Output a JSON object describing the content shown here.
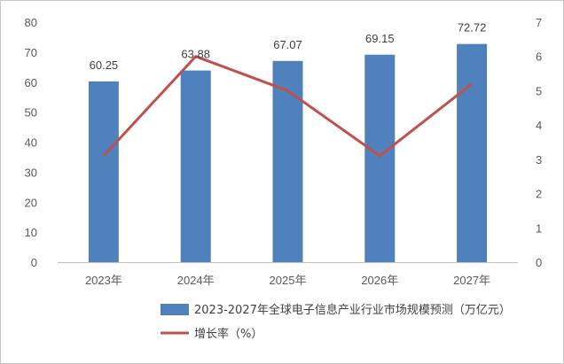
{
  "chart_data": {
    "type": "bar",
    "categories": [
      "2023年",
      "2024年",
      "2025年",
      "2026年",
      "2027年"
    ],
    "series": [
      {
        "name": "2023-2027年全球电子信息产业行业市场规模预测（万亿元）",
        "type": "bar",
        "axis": "left",
        "color": "#4f81bd",
        "values": [
          60.25,
          63.88,
          67.07,
          69.15,
          72.72
        ],
        "labels": [
          "60.25",
          "63.88",
          "67.07",
          "69.15",
          "72.72"
        ]
      },
      {
        "name": "增长率（%）",
        "type": "line",
        "axis": "right",
        "color": "#c0504d",
        "values": [
          3.1,
          6.0,
          5.0,
          3.1,
          5.2
        ]
      }
    ],
    "ylim_left": [
      0,
      80
    ],
    "yticks_left": [
      "0",
      "10",
      "20",
      "30",
      "40",
      "50",
      "60",
      "70",
      "80"
    ],
    "ylim_right": [
      0,
      7
    ],
    "yticks_right": [
      "0",
      "1",
      "2",
      "3",
      "4",
      "5",
      "6",
      "7"
    ],
    "grid": false,
    "legend_position": "bottom"
  }
}
